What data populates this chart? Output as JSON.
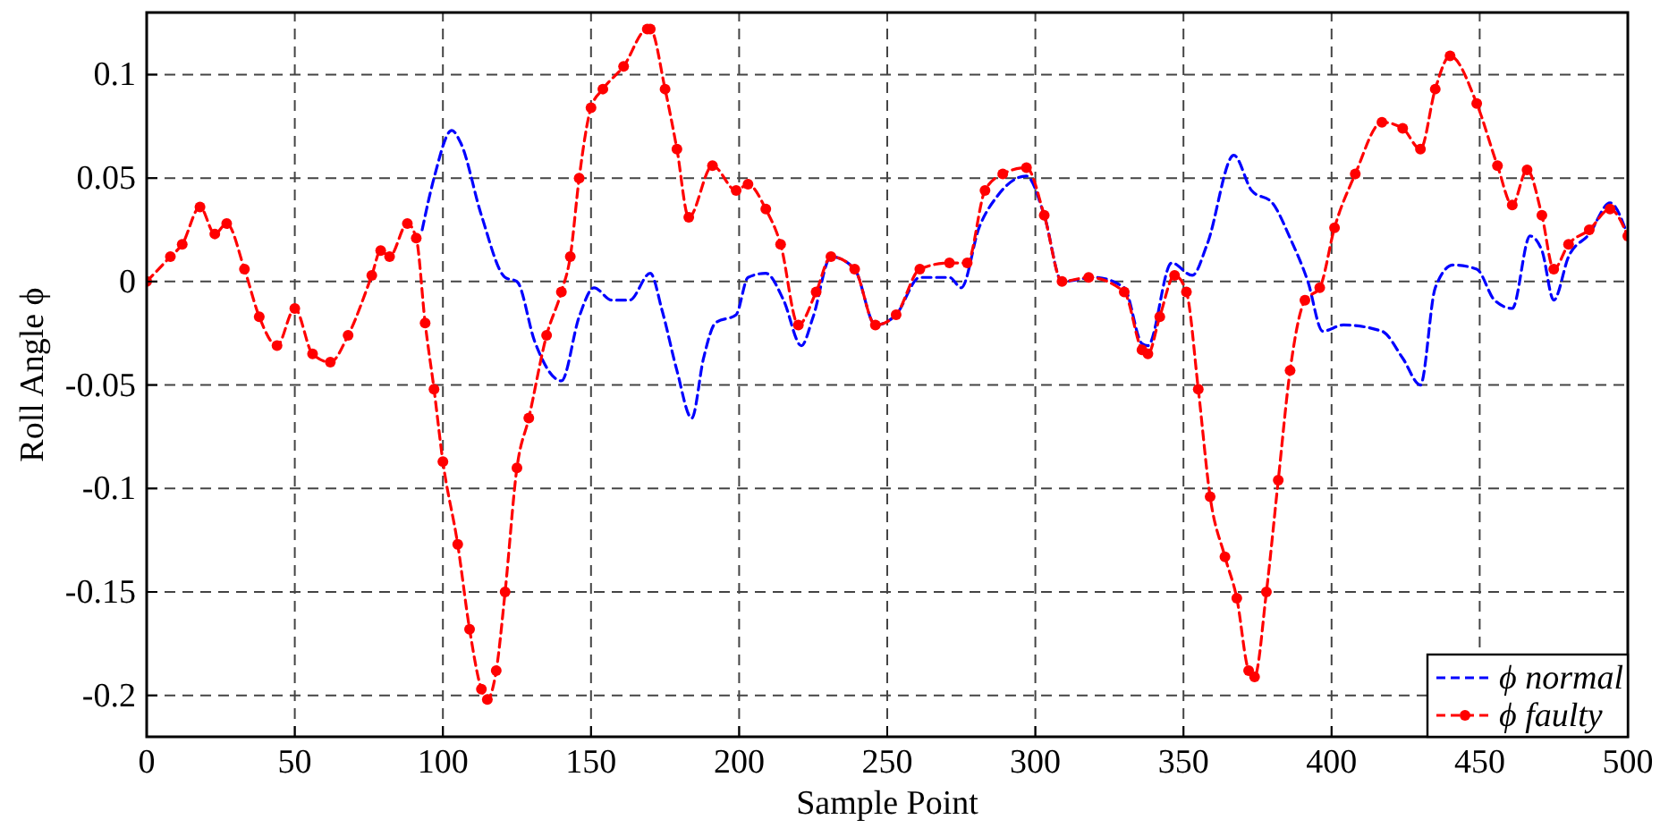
{
  "chart_data": {
    "type": "line",
    "xlabel": "Sample Point",
    "ylabel": "Roll Angle ϕ",
    "xlim": [
      0,
      500
    ],
    "ylim": [
      -0.22,
      0.13
    ],
    "xticks": [
      0,
      50,
      100,
      150,
      200,
      250,
      300,
      350,
      400,
      450,
      500
    ],
    "yticks": [
      -0.2,
      -0.15,
      -0.1,
      -0.05,
      0,
      0.05,
      0.1
    ],
    "grid": true,
    "legend": "bottom right",
    "line_style": "dashed",
    "series": [
      {
        "name": "ϕ normal",
        "color": "#0000ff",
        "marker": "none",
        "x": [
          93,
          97,
          103,
          106,
          113,
          121,
          125,
          131,
          140,
          146,
          151,
          157,
          163,
          170,
          174,
          179,
          184,
          188,
          192,
          199,
          203,
          209,
          215,
          221,
          225,
          231,
          239,
          246,
          253,
          261,
          271,
          275,
          281,
          287,
          297,
          303,
          309,
          320,
          330,
          336,
          338,
          346,
          353,
          358,
          367,
          373,
          380,
          386,
          392,
          397,
          404,
          417,
          424,
          430,
          435,
          441,
          449,
          455,
          461,
          467,
          471,
          475,
          480,
          487,
          494,
          500
        ],
        "values": [
          0.025,
          0.05,
          0.073,
          0.067,
          0.032,
          0.002,
          0,
          -0.029,
          -0.048,
          -0.017,
          -0.003,
          -0.009,
          -0.009,
          0.004,
          -0.014,
          -0.043,
          -0.066,
          -0.037,
          -0.02,
          -0.016,
          0.002,
          0.004,
          -0.009,
          -0.031,
          -0.017,
          0.012,
          0.006,
          -0.021,
          -0.016,
          0.002,
          0.002,
          -0.003,
          0.026,
          0.041,
          0.051,
          0.032,
          0,
          0.002,
          -0.003,
          -0.03,
          -0.031,
          0.009,
          0.003,
          0.018,
          0.061,
          0.044,
          0.038,
          0.021,
          0,
          -0.024,
          -0.021,
          -0.024,
          -0.037,
          -0.05,
          -0.003,
          0.008,
          0.006,
          -0.009,
          -0.013,
          0.022,
          0.015,
          -0.009,
          0.012,
          0.023,
          0.038,
          0.022
        ]
      },
      {
        "name": "ϕ faulty",
        "color": "#ff0000",
        "marker": "circle",
        "x": [
          0,
          8,
          12,
          18,
          23,
          27,
          33,
          38,
          44,
          50,
          56,
          62,
          68,
          76,
          79,
          82,
          88,
          91,
          94,
          97,
          100,
          105,
          109,
          113,
          115,
          118,
          121,
          125,
          129,
          135,
          140,
          143,
          146,
          150,
          154,
          161,
          169,
          170,
          175,
          179,
          183,
          191,
          199,
          203,
          209,
          214,
          220,
          226,
          231,
          239,
          246,
          253,
          261,
          271,
          277,
          283,
          289,
          297,
          303,
          309,
          318,
          330,
          336,
          338,
          342,
          347,
          351,
          355,
          359,
          364,
          368,
          372,
          374,
          378,
          382,
          386,
          391,
          396,
          401,
          408,
          417,
          424,
          430,
          435,
          440,
          449,
          456,
          461,
          466,
          471,
          475,
          480,
          487,
          494,
          500
        ],
        "values": [
          0,
          0.012,
          0.018,
          0.036,
          0.023,
          0.028,
          0.006,
          -0.017,
          -0.031,
          -0.013,
          -0.035,
          -0.039,
          -0.026,
          0.003,
          0.015,
          0.012,
          0.028,
          0.021,
          -0.02,
          -0.052,
          -0.087,
          -0.127,
          -0.168,
          -0.197,
          -0.202,
          -0.188,
          -0.15,
          -0.09,
          -0.066,
          -0.026,
          -0.005,
          0.012,
          0.05,
          0.084,
          0.093,
          0.104,
          0.122,
          0.122,
          0.093,
          0.064,
          0.031,
          0.056,
          0.044,
          0.047,
          0.035,
          0.018,
          -0.021,
          -0.005,
          0.012,
          0.006,
          -0.021,
          -0.016,
          0.006,
          0.009,
          0.009,
          0.044,
          0.052,
          0.055,
          0.032,
          0,
          0.002,
          -0.005,
          -0.033,
          -0.035,
          -0.017,
          0.003,
          -0.005,
          -0.052,
          -0.104,
          -0.133,
          -0.153,
          -0.188,
          -0.191,
          -0.15,
          -0.096,
          -0.043,
          -0.009,
          -0.003,
          0.026,
          0.052,
          0.077,
          0.074,
          0.064,
          0.093,
          0.109,
          0.086,
          0.056,
          0.037,
          0.054,
          0.032,
          0.006,
          0.018,
          0.025,
          0.035,
          0.022
        ]
      }
    ]
  }
}
